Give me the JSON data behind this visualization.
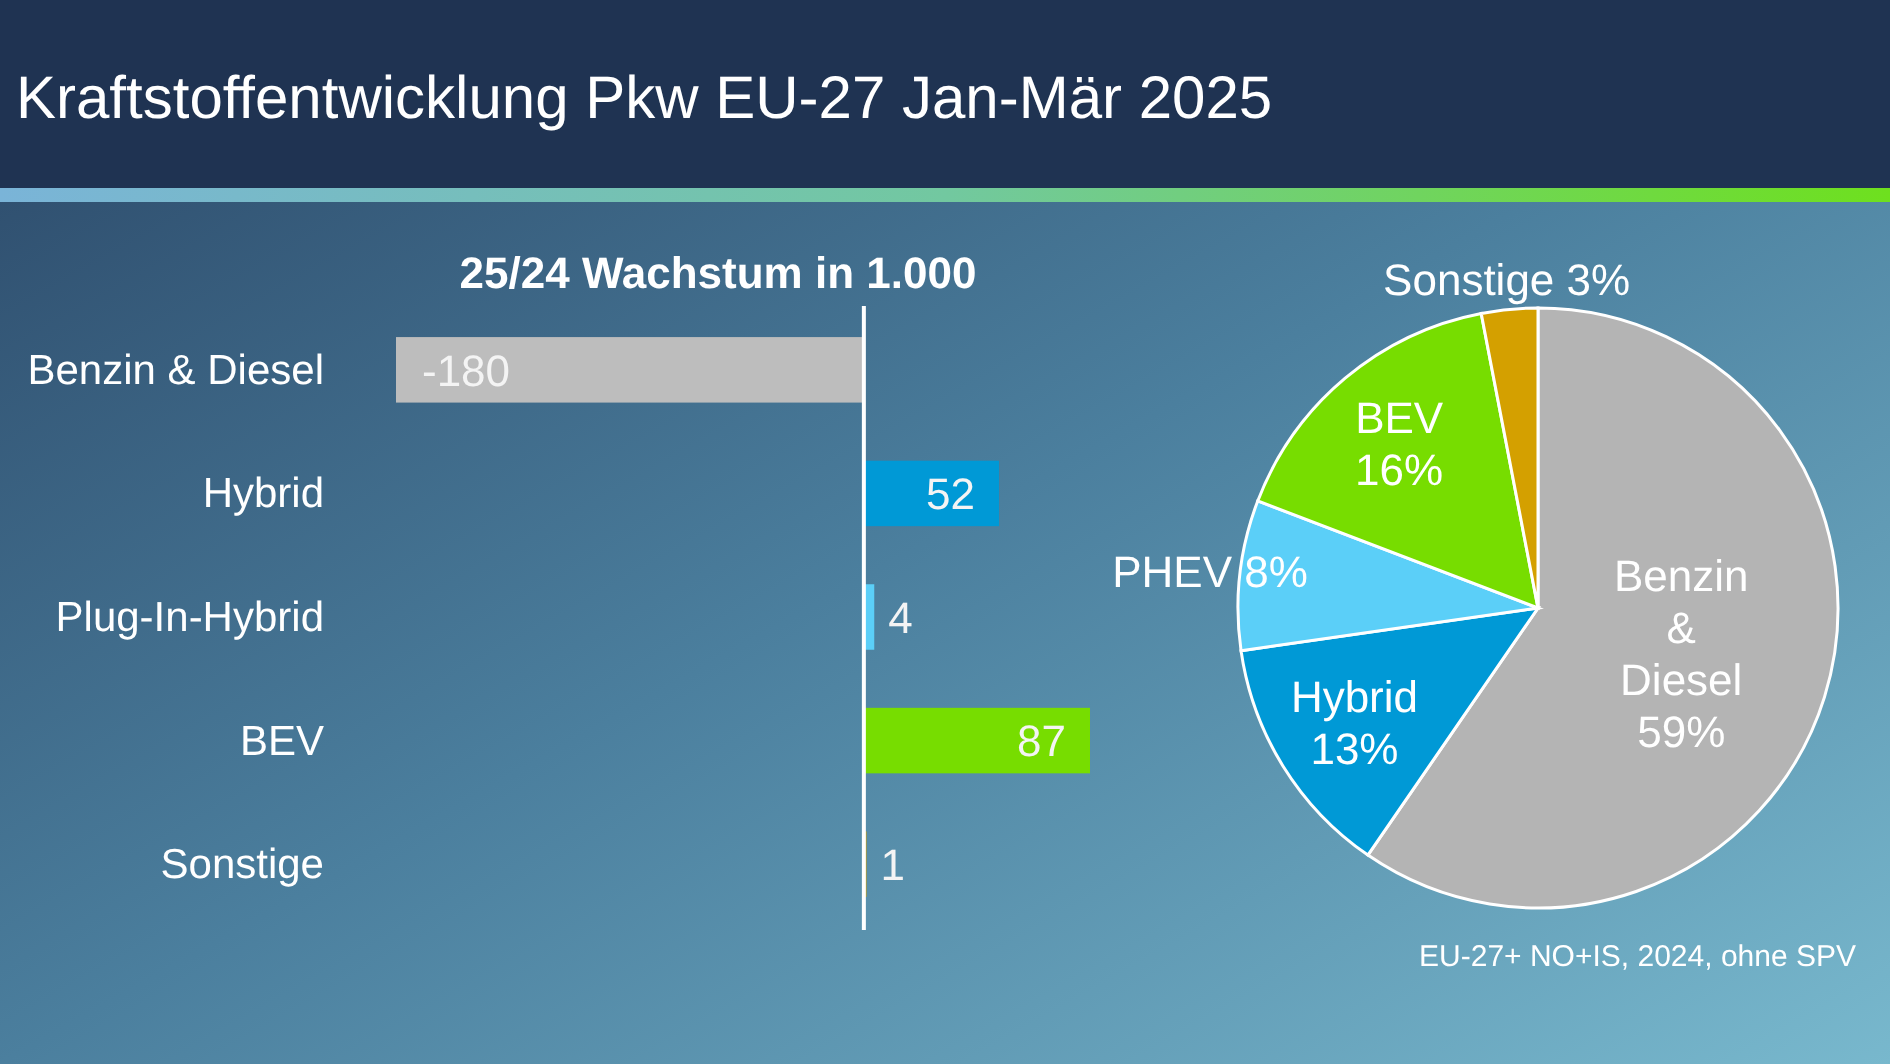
{
  "chart_data": [
    {
      "type": "bar",
      "orientation": "horizontal",
      "title": "Kraftstoffentwicklung Pkw EU-27 Jan-Mär 2025",
      "subtitle": "25/24 Wachstum in 1.000",
      "categories": [
        "Benzin & Diesel",
        "Hybrid",
        "Plug-In-Hybrid",
        "BEV",
        "Sonstige"
      ],
      "values": [
        -180,
        52,
        4,
        87,
        1
      ],
      "colors": [
        "#bdbdbd",
        "#0099d6",
        "#5bcff8",
        "#77dd00",
        "#d4a000"
      ],
      "data_labels": true,
      "tick_labels": "y"
    },
    {
      "type": "pie",
      "categories": [
        "Benzin & Diesel",
        "Hybrid",
        "PHEV",
        "BEV",
        "Sonstige"
      ],
      "values": [
        59,
        13,
        8,
        16,
        3
      ],
      "colors": [
        "#b4b4b4",
        "#0099d6",
        "#5bcff8",
        "#77dd00",
        "#d4a000"
      ],
      "value_labels": [
        "59%",
        "13%",
        "8%",
        "16%",
        "3%"
      ],
      "annotations": [
        "EU-27+ NO+IS, 2024, ohne SPV"
      ]
    }
  ]
}
